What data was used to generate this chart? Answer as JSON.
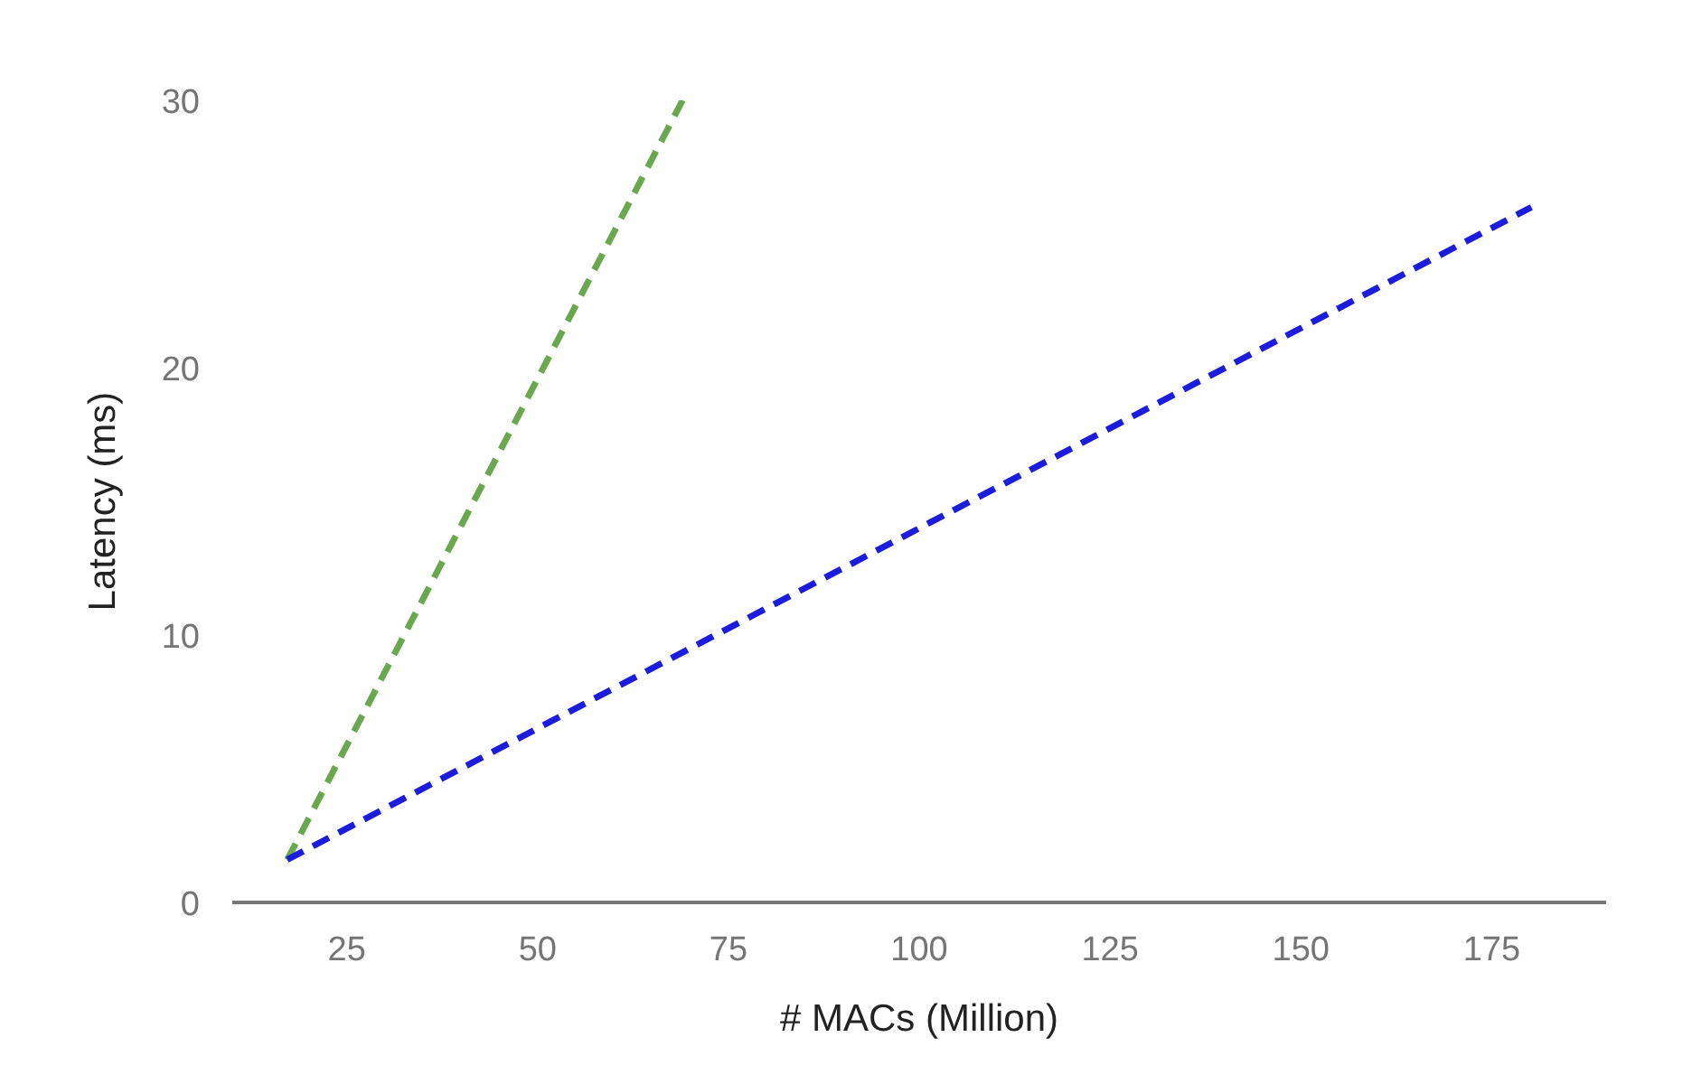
{
  "chart_data": {
    "type": "line",
    "xlabel": "# MACs (Million)",
    "ylabel": "Latency (ms)",
    "xlim": [
      10,
      190
    ],
    "ylim": [
      0,
      30
    ],
    "xticks": [
      25,
      50,
      75,
      100,
      125,
      150,
      175
    ],
    "yticks": [
      0,
      10,
      20,
      30
    ],
    "line_style": "dashed",
    "marker": "none",
    "series": [
      {
        "color": "#6aa84f",
        "x": [
          17.2,
          69
        ],
        "values": [
          1.6,
          30
        ]
      },
      {
        "color": "#1c1cdc",
        "x": [
          17.2,
          180.2
        ],
        "values": [
          1.6,
          26
        ]
      }
    ]
  }
}
